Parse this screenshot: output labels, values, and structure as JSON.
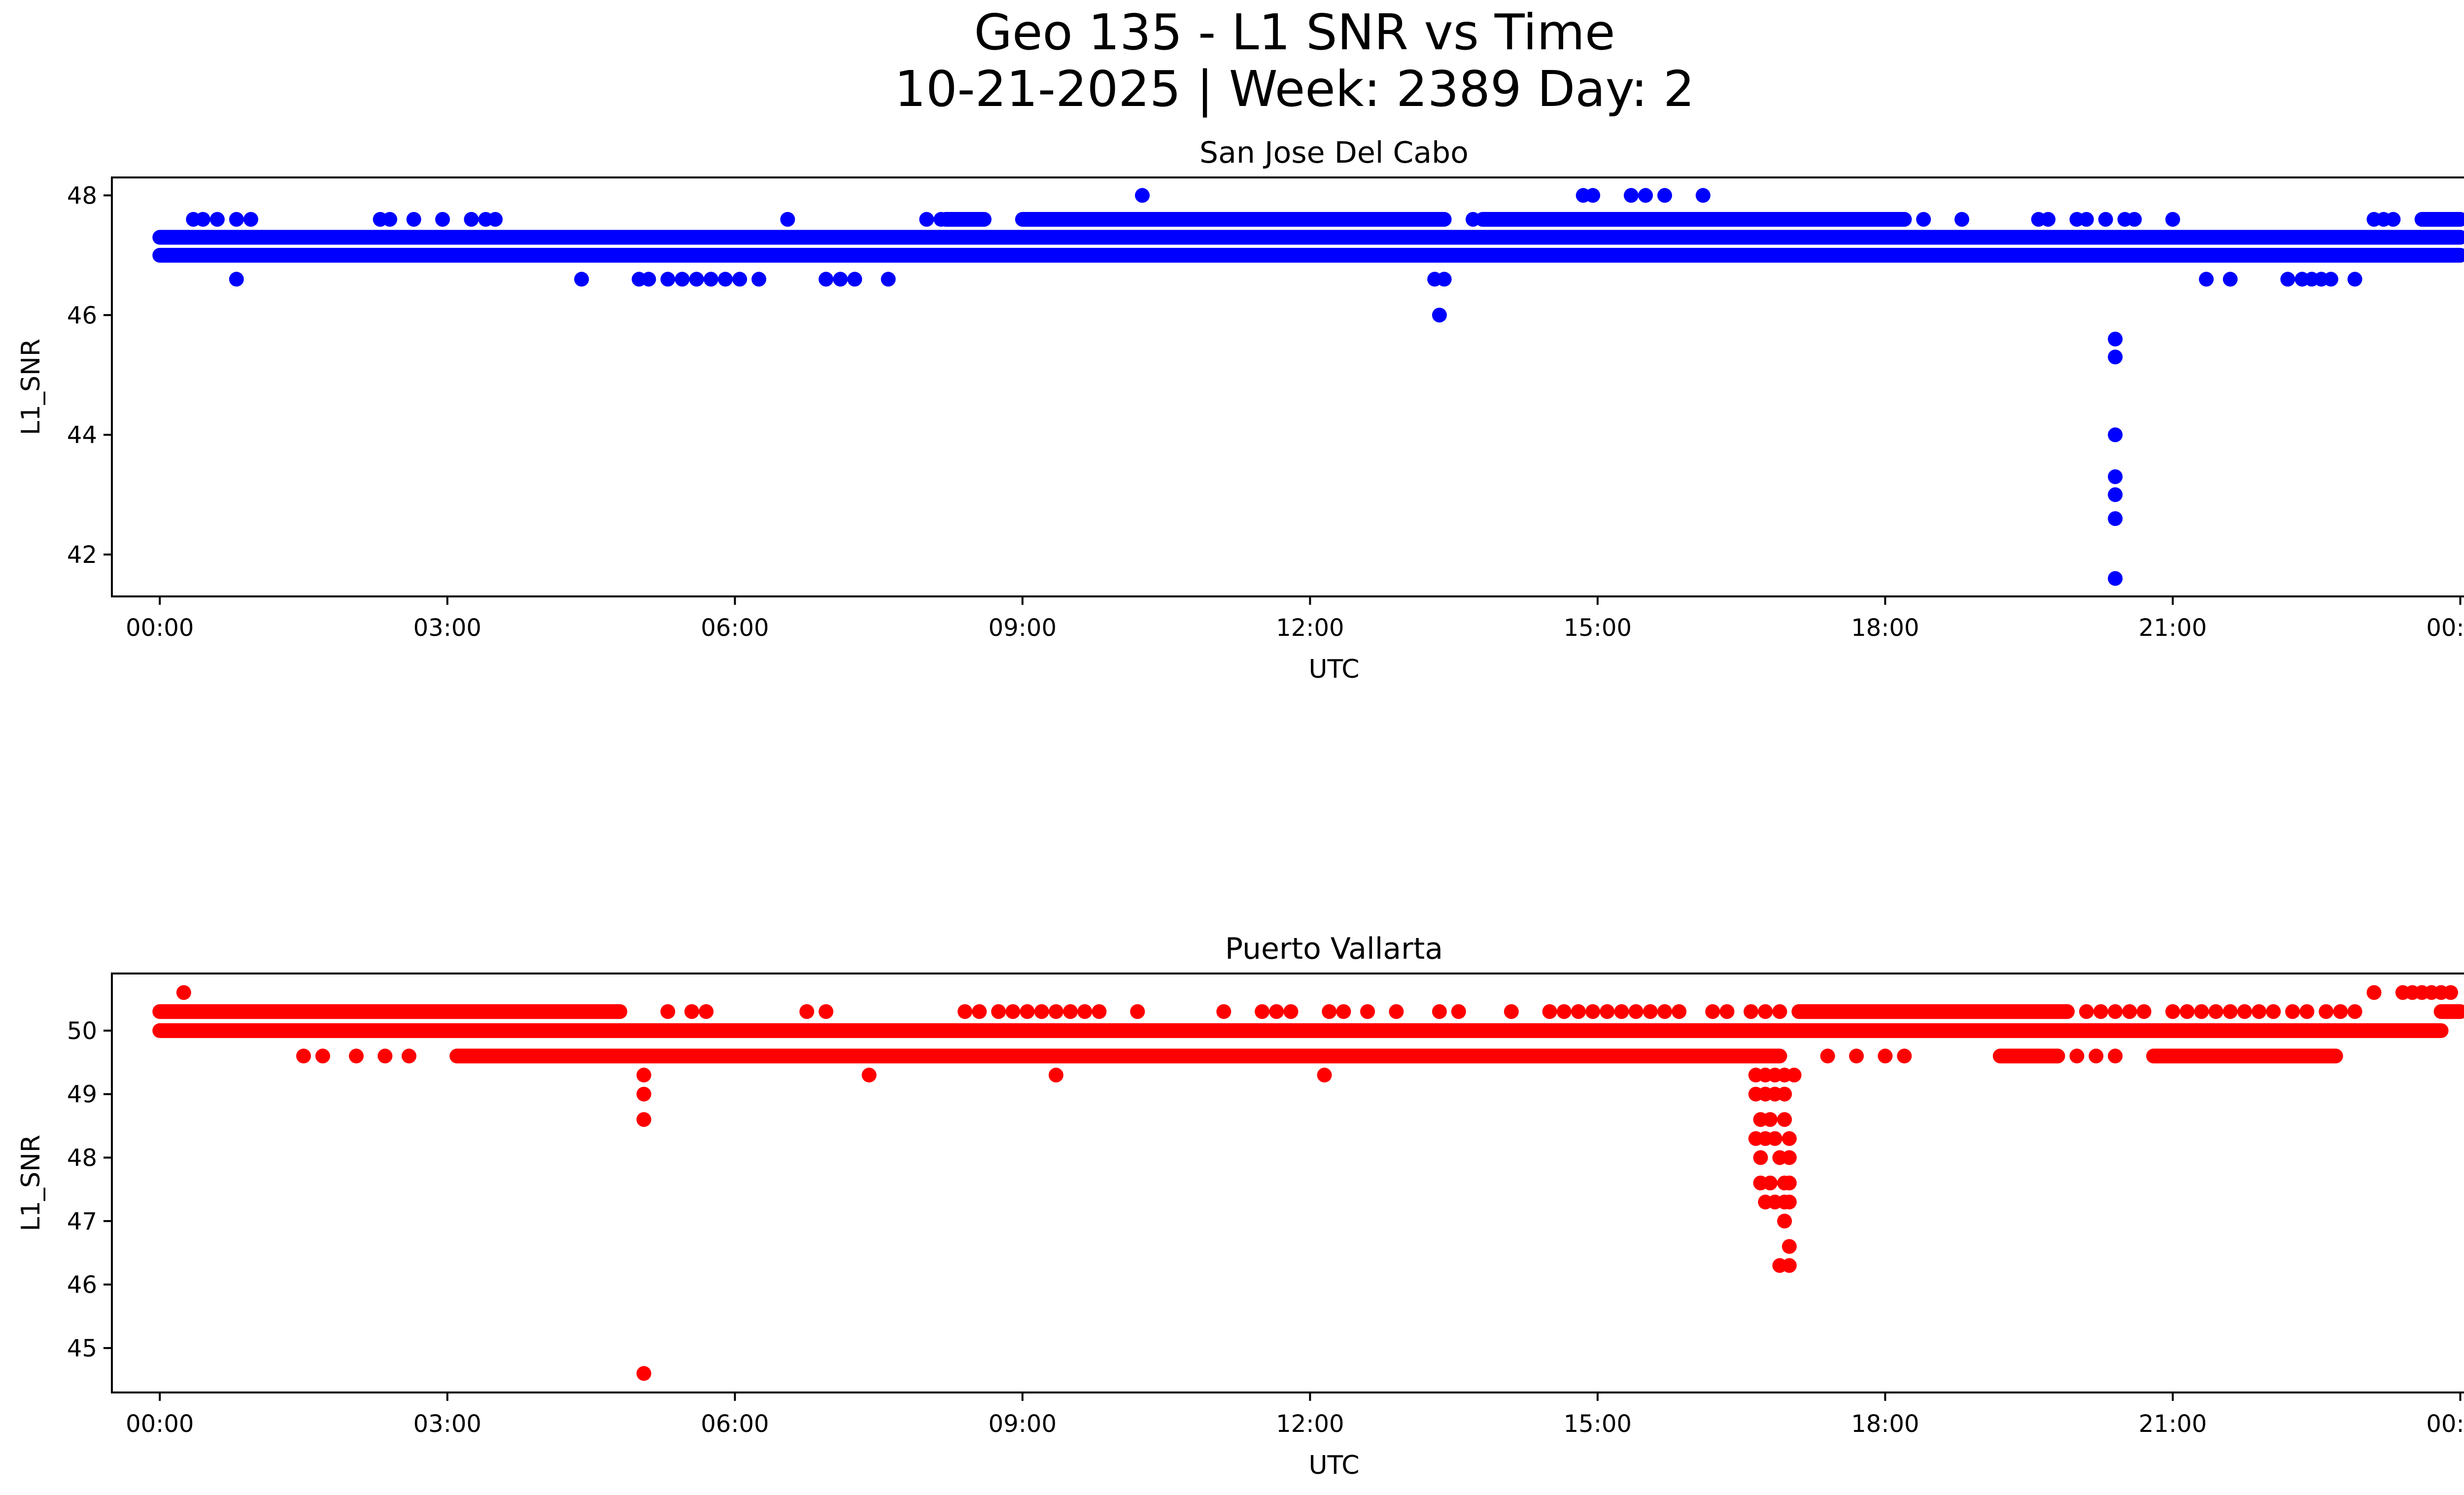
{
  "figure": {
    "title_line1": "Geo 135 - L1 SNR vs Time",
    "title_line2": "10-21-2025 | Week: 2389 Day: 2"
  },
  "chart_data": [
    {
      "type": "scatter",
      "title": "San Jose Del Cabo",
      "xlabel": "UTC",
      "ylabel": "L1_SNR",
      "color": "#0000ff",
      "xlim": [
        -0.5,
        25.0
      ],
      "ylim": [
        41.3,
        48.3
      ],
      "x_ticks": [
        0,
        3,
        6,
        9,
        12,
        15,
        18,
        21,
        24
      ],
      "x_tick_labels": [
        "00:00",
        "03:00",
        "06:00",
        "09:00",
        "12:00",
        "15:00",
        "18:00",
        "21:00",
        "00:00"
      ],
      "y_ticks": [
        42,
        44,
        46,
        48
      ],
      "y_tick_labels": [
        "42",
        "44",
        "46",
        "48"
      ],
      "bands": [
        {
          "y": 47.0,
          "x_ranges": [
            [
              0.0,
              24.0
            ]
          ]
        },
        {
          "y": 47.3,
          "x_ranges": [
            [
              0.0,
              24.0
            ]
          ]
        },
        {
          "y": 47.6,
          "x_ranges": [
            [
              8.2,
              8.6
            ],
            [
              9.0,
              13.4
            ],
            [
              13.8,
              18.2
            ],
            [
              23.6,
              24.0
            ]
          ]
        }
      ],
      "points": [
        {
          "x": 0.35,
          "y": 47.6
        },
        {
          "x": 0.45,
          "y": 47.6
        },
        {
          "x": 0.6,
          "y": 47.6
        },
        {
          "x": 0.8,
          "y": 47.6
        },
        {
          "x": 0.95,
          "y": 47.6
        },
        {
          "x": 2.3,
          "y": 47.6
        },
        {
          "x": 2.4,
          "y": 47.6
        },
        {
          "x": 2.65,
          "y": 47.6
        },
        {
          "x": 2.95,
          "y": 47.6
        },
        {
          "x": 3.25,
          "y": 47.6
        },
        {
          "x": 3.4,
          "y": 47.6
        },
        {
          "x": 3.5,
          "y": 47.6
        },
        {
          "x": 6.55,
          "y": 47.6
        },
        {
          "x": 8.0,
          "y": 47.6
        },
        {
          "x": 8.15,
          "y": 47.6
        },
        {
          "x": 13.7,
          "y": 47.6
        },
        {
          "x": 18.2,
          "y": 47.6
        },
        {
          "x": 18.4,
          "y": 47.6
        },
        {
          "x": 18.8,
          "y": 47.6
        },
        {
          "x": 19.6,
          "y": 47.6
        },
        {
          "x": 19.7,
          "y": 47.6
        },
        {
          "x": 20.0,
          "y": 47.6
        },
        {
          "x": 20.1,
          "y": 47.6
        },
        {
          "x": 20.3,
          "y": 47.6
        },
        {
          "x": 20.5,
          "y": 47.6
        },
        {
          "x": 20.6,
          "y": 47.6
        },
        {
          "x": 21.0,
          "y": 47.6
        },
        {
          "x": 23.1,
          "y": 47.6
        },
        {
          "x": 23.2,
          "y": 47.6
        },
        {
          "x": 23.3,
          "y": 47.6
        },
        {
          "x": 10.25,
          "y": 48.0
        },
        {
          "x": 14.85,
          "y": 48.0
        },
        {
          "x": 14.95,
          "y": 48.0
        },
        {
          "x": 15.35,
          "y": 48.0
        },
        {
          "x": 15.5,
          "y": 48.0
        },
        {
          "x": 15.7,
          "y": 48.0
        },
        {
          "x": 16.1,
          "y": 48.0
        },
        {
          "x": 0.8,
          "y": 46.6
        },
        {
          "x": 4.4,
          "y": 46.6
        },
        {
          "x": 5.0,
          "y": 46.6
        },
        {
          "x": 5.1,
          "y": 46.6
        },
        {
          "x": 5.3,
          "y": 46.6
        },
        {
          "x": 5.45,
          "y": 46.6
        },
        {
          "x": 5.6,
          "y": 46.6
        },
        {
          "x": 5.75,
          "y": 46.6
        },
        {
          "x": 5.9,
          "y": 46.6
        },
        {
          "x": 6.05,
          "y": 46.6
        },
        {
          "x": 6.25,
          "y": 46.6
        },
        {
          "x": 6.95,
          "y": 46.6
        },
        {
          "x": 7.1,
          "y": 46.6
        },
        {
          "x": 7.25,
          "y": 46.6
        },
        {
          "x": 7.6,
          "y": 46.6
        },
        {
          "x": 13.3,
          "y": 46.6
        },
        {
          "x": 13.4,
          "y": 46.6
        },
        {
          "x": 21.35,
          "y": 46.6
        },
        {
          "x": 21.6,
          "y": 46.6
        },
        {
          "x": 22.2,
          "y": 46.6
        },
        {
          "x": 22.35,
          "y": 46.6
        },
        {
          "x": 22.45,
          "y": 46.6
        },
        {
          "x": 22.55,
          "y": 46.6
        },
        {
          "x": 22.65,
          "y": 46.6
        },
        {
          "x": 22.9,
          "y": 46.6
        },
        {
          "x": 13.35,
          "y": 46.0
        },
        {
          "x": 20.4,
          "y": 45.6
        },
        {
          "x": 20.4,
          "y": 45.3
        },
        {
          "x": 20.4,
          "y": 44.0
        },
        {
          "x": 20.4,
          "y": 43.3
        },
        {
          "x": 20.4,
          "y": 43.0
        },
        {
          "x": 20.4,
          "y": 42.6
        },
        {
          "x": 20.4,
          "y": 41.6
        }
      ]
    },
    {
      "type": "scatter",
      "title": "Puerto Vallarta",
      "xlabel": "UTC",
      "ylabel": "L1_SNR",
      "color": "#ff0000",
      "xlim": [
        -0.5,
        25.0
      ],
      "ylim": [
        44.3,
        50.9
      ],
      "x_ticks": [
        0,
        3,
        6,
        9,
        12,
        15,
        18,
        21,
        24
      ],
      "x_tick_labels": [
        "00:00",
        "03:00",
        "06:00",
        "09:00",
        "12:00",
        "15:00",
        "18:00",
        "21:00",
        "00:00"
      ],
      "y_ticks": [
        45,
        46,
        47,
        48,
        49,
        50
      ],
      "y_tick_labels": [
        "45",
        "46",
        "47",
        "48",
        "49",
        "50"
      ],
      "bands": [
        {
          "y": 50.0,
          "x_ranges": [
            [
              0.0,
              23.8
            ]
          ]
        },
        {
          "y": 50.3,
          "x_ranges": [
            [
              0.0,
              4.8
            ],
            [
              17.1,
              19.9
            ],
            [
              23.8,
              24.0
            ]
          ]
        },
        {
          "y": 49.6,
          "x_ranges": [
            [
              3.1,
              16.9
            ],
            [
              19.2,
              19.8
            ],
            [
              20.8,
              22.7
            ]
          ]
        }
      ],
      "points": [
        {
          "x": 0.25,
          "y": 50.6
        },
        {
          "x": 23.1,
          "y": 50.6
        },
        {
          "x": 23.4,
          "y": 50.6
        },
        {
          "x": 23.5,
          "y": 50.6
        },
        {
          "x": 23.6,
          "y": 50.6
        },
        {
          "x": 23.7,
          "y": 50.6
        },
        {
          "x": 23.8,
          "y": 50.6
        },
        {
          "x": 23.9,
          "y": 50.6
        },
        {
          "x": 5.3,
          "y": 50.3
        },
        {
          "x": 5.55,
          "y": 50.3
        },
        {
          "x": 5.7,
          "y": 50.3
        },
        {
          "x": 6.75,
          "y": 50.3
        },
        {
          "x": 6.95,
          "y": 50.3
        },
        {
          "x": 8.4,
          "y": 50.3
        },
        {
          "x": 8.55,
          "y": 50.3
        },
        {
          "x": 8.75,
          "y": 50.3
        },
        {
          "x": 8.9,
          "y": 50.3
        },
        {
          "x": 9.05,
          "y": 50.3
        },
        {
          "x": 9.2,
          "y": 50.3
        },
        {
          "x": 9.35,
          "y": 50.3
        },
        {
          "x": 9.5,
          "y": 50.3
        },
        {
          "x": 9.65,
          "y": 50.3
        },
        {
          "x": 9.8,
          "y": 50.3
        },
        {
          "x": 10.2,
          "y": 50.3
        },
        {
          "x": 11.1,
          "y": 50.3
        },
        {
          "x": 11.5,
          "y": 50.3
        },
        {
          "x": 11.65,
          "y": 50.3
        },
        {
          "x": 11.8,
          "y": 50.3
        },
        {
          "x": 12.2,
          "y": 50.3
        },
        {
          "x": 12.35,
          "y": 50.3
        },
        {
          "x": 12.6,
          "y": 50.3
        },
        {
          "x": 12.9,
          "y": 50.3
        },
        {
          "x": 13.35,
          "y": 50.3
        },
        {
          "x": 13.55,
          "y": 50.3
        },
        {
          "x": 14.1,
          "y": 50.3
        },
        {
          "x": 14.5,
          "y": 50.3
        },
        {
          "x": 14.65,
          "y": 50.3
        },
        {
          "x": 14.8,
          "y": 50.3
        },
        {
          "x": 14.95,
          "y": 50.3
        },
        {
          "x": 15.1,
          "y": 50.3
        },
        {
          "x": 15.25,
          "y": 50.3
        },
        {
          "x": 15.4,
          "y": 50.3
        },
        {
          "x": 15.55,
          "y": 50.3
        },
        {
          "x": 15.7,
          "y": 50.3
        },
        {
          "x": 15.85,
          "y": 50.3
        },
        {
          "x": 16.2,
          "y": 50.3
        },
        {
          "x": 16.35,
          "y": 50.3
        },
        {
          "x": 16.6,
          "y": 50.3
        },
        {
          "x": 16.75,
          "y": 50.3
        },
        {
          "x": 16.9,
          "y": 50.3
        },
        {
          "x": 20.1,
          "y": 50.3
        },
        {
          "x": 20.25,
          "y": 50.3
        },
        {
          "x": 20.4,
          "y": 50.3
        },
        {
          "x": 20.55,
          "y": 50.3
        },
        {
          "x": 20.7,
          "y": 50.3
        },
        {
          "x": 21.0,
          "y": 50.3
        },
        {
          "x": 21.15,
          "y": 50.3
        },
        {
          "x": 21.3,
          "y": 50.3
        },
        {
          "x": 21.45,
          "y": 50.3
        },
        {
          "x": 21.6,
          "y": 50.3
        },
        {
          "x": 21.75,
          "y": 50.3
        },
        {
          "x": 21.9,
          "y": 50.3
        },
        {
          "x": 22.05,
          "y": 50.3
        },
        {
          "x": 22.25,
          "y": 50.3
        },
        {
          "x": 22.4,
          "y": 50.3
        },
        {
          "x": 22.6,
          "y": 50.3
        },
        {
          "x": 22.75,
          "y": 50.3
        },
        {
          "x": 22.9,
          "y": 50.3
        },
        {
          "x": 1.5,
          "y": 49.6
        },
        {
          "x": 1.7,
          "y": 49.6
        },
        {
          "x": 2.05,
          "y": 49.6
        },
        {
          "x": 2.35,
          "y": 49.6
        },
        {
          "x": 2.6,
          "y": 49.6
        },
        {
          "x": 17.4,
          "y": 49.6
        },
        {
          "x": 17.7,
          "y": 49.6
        },
        {
          "x": 18.0,
          "y": 49.6
        },
        {
          "x": 18.2,
          "y": 49.6
        },
        {
          "x": 20.0,
          "y": 49.6
        },
        {
          "x": 20.2,
          "y": 49.6
        },
        {
          "x": 20.4,
          "y": 49.6
        },
        {
          "x": 7.4,
          "y": 49.3
        },
        {
          "x": 9.35,
          "y": 49.3
        },
        {
          "x": 12.15,
          "y": 49.3
        },
        {
          "x": 5.05,
          "y": 49.3
        },
        {
          "x": 5.05,
          "y": 49.0
        },
        {
          "x": 5.05,
          "y": 48.6
        },
        {
          "x": 5.05,
          "y": 44.6
        },
        {
          "x": 16.65,
          "y": 49.3
        },
        {
          "x": 16.75,
          "y": 49.3
        },
        {
          "x": 16.85,
          "y": 49.3
        },
        {
          "x": 16.95,
          "y": 49.3
        },
        {
          "x": 17.05,
          "y": 49.3
        },
        {
          "x": 16.65,
          "y": 49.0
        },
        {
          "x": 16.75,
          "y": 49.0
        },
        {
          "x": 16.85,
          "y": 49.0
        },
        {
          "x": 16.95,
          "y": 49.0
        },
        {
          "x": 16.7,
          "y": 48.6
        },
        {
          "x": 16.8,
          "y": 48.6
        },
        {
          "x": 16.95,
          "y": 48.6
        },
        {
          "x": 16.65,
          "y": 48.3
        },
        {
          "x": 16.75,
          "y": 48.3
        },
        {
          "x": 16.85,
          "y": 48.3
        },
        {
          "x": 17.0,
          "y": 48.3
        },
        {
          "x": 16.7,
          "y": 48.0
        },
        {
          "x": 16.9,
          "y": 48.0
        },
        {
          "x": 17.0,
          "y": 48.0
        },
        {
          "x": 16.7,
          "y": 47.6
        },
        {
          "x": 16.8,
          "y": 47.6
        },
        {
          "x": 16.95,
          "y": 47.6
        },
        {
          "x": 17.0,
          "y": 47.6
        },
        {
          "x": 16.75,
          "y": 47.3
        },
        {
          "x": 16.85,
          "y": 47.3
        },
        {
          "x": 16.95,
          "y": 47.3
        },
        {
          "x": 17.0,
          "y": 47.3
        },
        {
          "x": 16.95,
          "y": 47.0
        },
        {
          "x": 17.0,
          "y": 46.6
        },
        {
          "x": 16.9,
          "y": 46.3
        },
        {
          "x": 17.0,
          "y": 46.3
        }
      ]
    }
  ]
}
